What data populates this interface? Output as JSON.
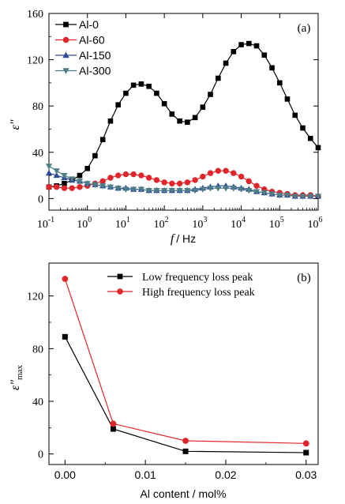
{
  "chart_data": [
    {
      "panel_label": "(a)",
      "type": "line",
      "xscale": "log",
      "xlabel_var": "f",
      "xlabel_unit": "/ Hz",
      "ylabel": "ε″",
      "xlim": [
        0.1,
        1000000
      ],
      "ylim": [
        -10,
        160
      ],
      "yticks": [
        "0",
        "40",
        "80",
        "120",
        "160"
      ],
      "xticks": [
        {
          "base": "10",
          "exp": "-1"
        },
        {
          "base": "10",
          "exp": "0"
        },
        {
          "base": "10",
          "exp": "1"
        },
        {
          "base": "10",
          "exp": "2"
        },
        {
          "base": "10",
          "exp": "3"
        },
        {
          "base": "10",
          "exp": "4"
        },
        {
          "base": "10",
          "exp": "5"
        },
        {
          "base": "10",
          "exp": "6"
        }
      ],
      "legend": "top-left",
      "series": [
        {
          "name": "Al-0",
          "color": "#000000",
          "marker": "square",
          "x": [
            0.1,
            0.158,
            0.251,
            0.398,
            0.631,
            1,
            1.58,
            2.51,
            3.98,
            6.31,
            10,
            15.8,
            25.1,
            39.8,
            63.1,
            100,
            158,
            251,
            398,
            631,
            1000,
            1580,
            2510,
            3980,
            6310,
            10000,
            15800,
            25100,
            39800,
            63100,
            100000,
            158000,
            251000,
            398000,
            631000,
            1000000
          ],
          "y": [
            10,
            11,
            13,
            16,
            20,
            26,
            37,
            51,
            67,
            81,
            91,
            98,
            99,
            97,
            91,
            82,
            73,
            67,
            66,
            70,
            79,
            90,
            104,
            117,
            127,
            133,
            134,
            132,
            124,
            113,
            100,
            86,
            72,
            61,
            52,
            44
          ]
        },
        {
          "name": "Al-60",
          "color": "#e0262b",
          "marker": "circle",
          "x": [
            0.1,
            0.158,
            0.251,
            0.398,
            0.631,
            1,
            1.58,
            2.51,
            3.98,
            6.31,
            10,
            15.8,
            25.1,
            39.8,
            63.1,
            100,
            158,
            251,
            398,
            631,
            1000,
            1580,
            2510,
            3980,
            6310,
            10000,
            15800,
            25100,
            39800,
            63100,
            100000,
            158000,
            251000,
            398000,
            631000,
            1000000
          ],
          "y": [
            10,
            10,
            9,
            9,
            10,
            11,
            13,
            15,
            18,
            20,
            21,
            21,
            20,
            18,
            16,
            14,
            13,
            13,
            14,
            16,
            19,
            22,
            24,
            24,
            22,
            19,
            15,
            11,
            8,
            6,
            5,
            4,
            3,
            3,
            3,
            2
          ]
        },
        {
          "name": "Al-150",
          "color": "#2d4a9b",
          "marker": "triangle",
          "x": [
            0.1,
            0.158,
            0.251,
            0.398,
            0.631,
            1,
            1.58,
            2.51,
            3.98,
            6.31,
            10,
            15.8,
            25.1,
            39.8,
            63.1,
            100,
            158,
            251,
            398,
            631,
            1000,
            1580,
            2510,
            3980,
            6310,
            10000,
            15800,
            25100,
            39800,
            63100,
            100000,
            158000,
            251000,
            398000,
            631000,
            1000000
          ],
          "y": [
            22,
            20,
            18,
            16,
            15,
            13,
            12,
            11,
            10,
            9,
            9,
            8,
            8,
            7,
            7,
            7,
            7,
            7,
            7,
            8,
            9,
            10,
            11,
            11,
            10,
            9,
            8,
            6,
            5,
            4,
            3,
            3,
            2,
            2,
            2,
            2
          ]
        },
        {
          "name": "Al-300",
          "color": "#4d7e86",
          "marker": "triangle-down",
          "x": [
            0.1,
            0.158,
            0.251,
            0.398,
            0.631,
            1,
            1.58,
            2.51,
            3.98,
            6.31,
            10,
            15.8,
            25.1,
            39.8,
            63.1,
            100,
            158,
            251,
            398,
            631,
            1000,
            1580,
            2510,
            3980,
            6310,
            10000,
            15800,
            25100,
            39800,
            63100,
            100000,
            158000,
            251000,
            398000,
            631000,
            1000000
          ],
          "y": [
            28,
            24,
            20,
            17,
            15,
            13,
            12,
            11,
            10,
            9,
            8,
            8,
            8,
            7,
            7,
            7,
            7,
            7,
            7,
            7,
            8,
            9,
            9,
            9,
            9,
            8,
            7,
            6,
            5,
            4,
            3,
            3,
            2,
            2,
            2,
            2
          ]
        }
      ]
    },
    {
      "panel_label": "(b)",
      "type": "line",
      "xlabel": "Al content  / mol%",
      "ylabel_base": "ε″",
      "ylabel_sub": "max",
      "xlim": [
        -0.002,
        0.0315
      ],
      "ylim": [
        -8,
        145
      ],
      "xticks": [
        "0.00",
        "0.01",
        "0.02",
        "0.03"
      ],
      "yticks": [
        "0",
        "40",
        "80",
        "120"
      ],
      "legend": "top-right",
      "series": [
        {
          "name": "Low frequency loss peak",
          "color": "#000000",
          "marker": "square",
          "x": [
            0,
            0.006,
            0.015,
            0.03
          ],
          "y": [
            89,
            19,
            2,
            1
          ]
        },
        {
          "name": "High frequency loss peak",
          "color": "#e0262b",
          "marker": "circle",
          "x": [
            0,
            0.006,
            0.015,
            0.03
          ],
          "y": [
            133,
            23,
            10,
            8
          ]
        }
      ]
    }
  ]
}
